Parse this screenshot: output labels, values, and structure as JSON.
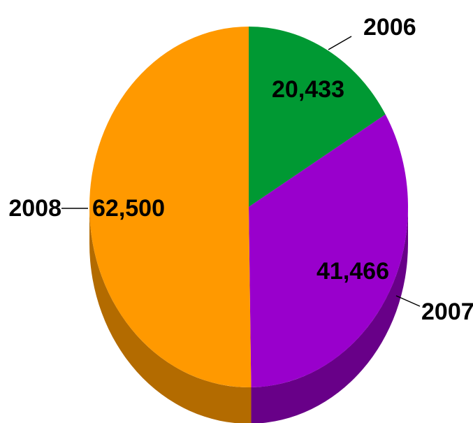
{
  "chart_data": {
    "type": "pie",
    "style": "3d",
    "title": "",
    "start_angle_deg": 0,
    "direction": "clockwise",
    "slices": [
      {
        "category": "2006",
        "value": 20433,
        "value_label": "20,433",
        "color": "#009933",
        "side_color": "#007a28"
      },
      {
        "category": "2007",
        "value": 41466,
        "value_label": "41,466",
        "color": "#9900cc",
        "side_color": "#680088"
      },
      {
        "category": "2008",
        "value": 62500,
        "value_label": "62,500",
        "color": "#ff9900",
        "side_color": "#b36b00"
      }
    ],
    "legend": "none"
  }
}
